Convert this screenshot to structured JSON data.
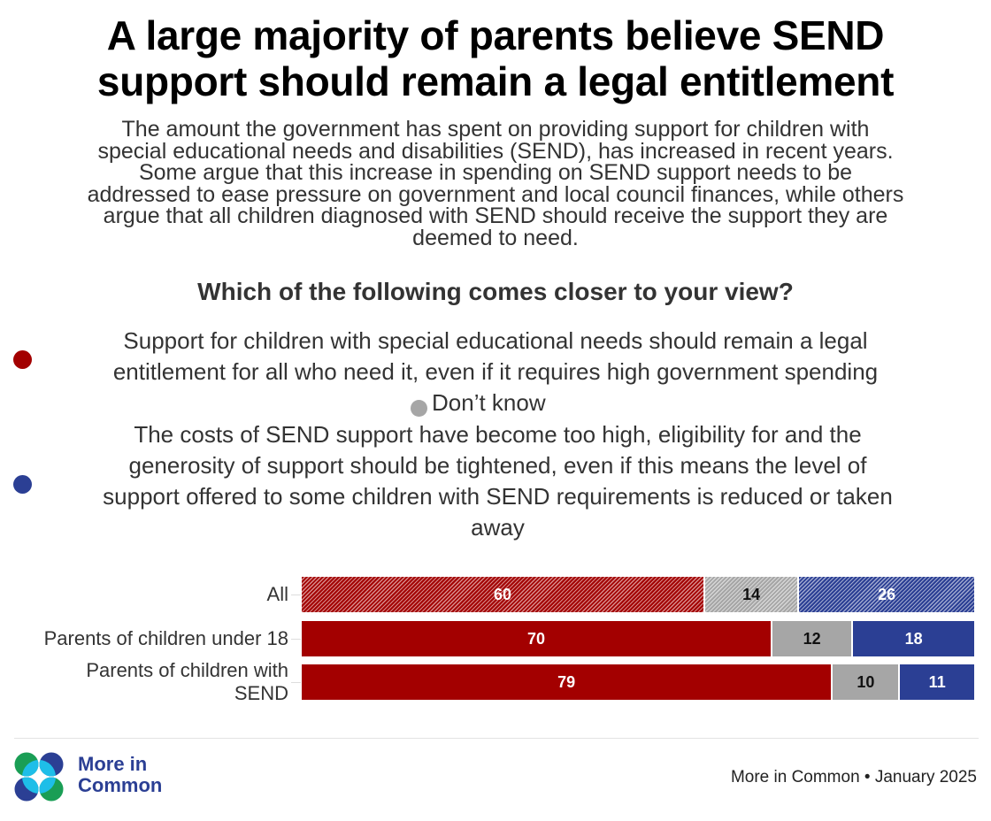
{
  "header": {
    "title_lines": [
      "A large majority of parents believe SEND",
      "support should remain a legal entitlement"
    ],
    "subtitle_lines": [
      "The amount the government has spent on providing support for children with",
      "special educational needs and disabilities (SEND), has increased in recent years.",
      "Some argue that this increase in spending on SEND support needs to be",
      "addressed to ease pressure on government and local council finances, while others",
      "argue that all children diagnosed with SEND should receive the support they are",
      "deemed to need."
    ],
    "question": "Which of the following comes closer to your view?"
  },
  "legend": {
    "items": [
      {
        "name": "entitlement",
        "color": "#a30000",
        "lines": [
          "Support for children with special educational needs should remain a legal",
          "entitlement for all who need it, even if it requires high government spending"
        ]
      },
      {
        "name": "dont-know",
        "color": "#a6a6a6",
        "lines": [
          "Don’t know"
        ]
      },
      {
        "name": "tightened",
        "color": "#2b3f94",
        "lines": [
          "The costs of SEND support have become too high, eligibility for and the",
          "generosity of support should be tightened, even if this means the level of",
          "support offered to some children with SEND requirements is reduced or taken",
          "away"
        ]
      }
    ]
  },
  "chart_data": {
    "type": "bar",
    "orientation": "horizontal-stacked",
    "title": "A large majority of parents believe SEND support should remain a legal entitlement",
    "xlabel": "",
    "ylabel": "",
    "xlim": [
      0,
      100
    ],
    "grid": false,
    "categories": [
      [
        "All"
      ],
      [
        "Parents of children under 18"
      ],
      [
        "Parents of children with",
        "SEND"
      ]
    ],
    "category_names": [
      "All",
      "Parents of children under 18",
      "Parents of children with SEND"
    ],
    "hatched_rows": [
      true,
      false,
      false
    ],
    "series": [
      {
        "name": "Should remain a legal entitlement",
        "color": "#a30000",
        "label_color": "#ffffff",
        "values": [
          60,
          70,
          79
        ]
      },
      {
        "name": "Don’t know",
        "color": "#a6a6a6",
        "label_color": "#111111",
        "values": [
          14,
          12,
          10
        ]
      },
      {
        "name": "Should be tightened",
        "color": "#2b3f94",
        "label_color": "#ffffff",
        "values": [
          26,
          18,
          11
        ]
      }
    ]
  },
  "footer": {
    "logo_text_lines": [
      "More in",
      "Common"
    ],
    "source": "More in Common • January 2025",
    "logo_colors": {
      "dark_blue": "#2b3f94",
      "light_blue": "#1ebee8",
      "green": "#1a9e55"
    }
  }
}
